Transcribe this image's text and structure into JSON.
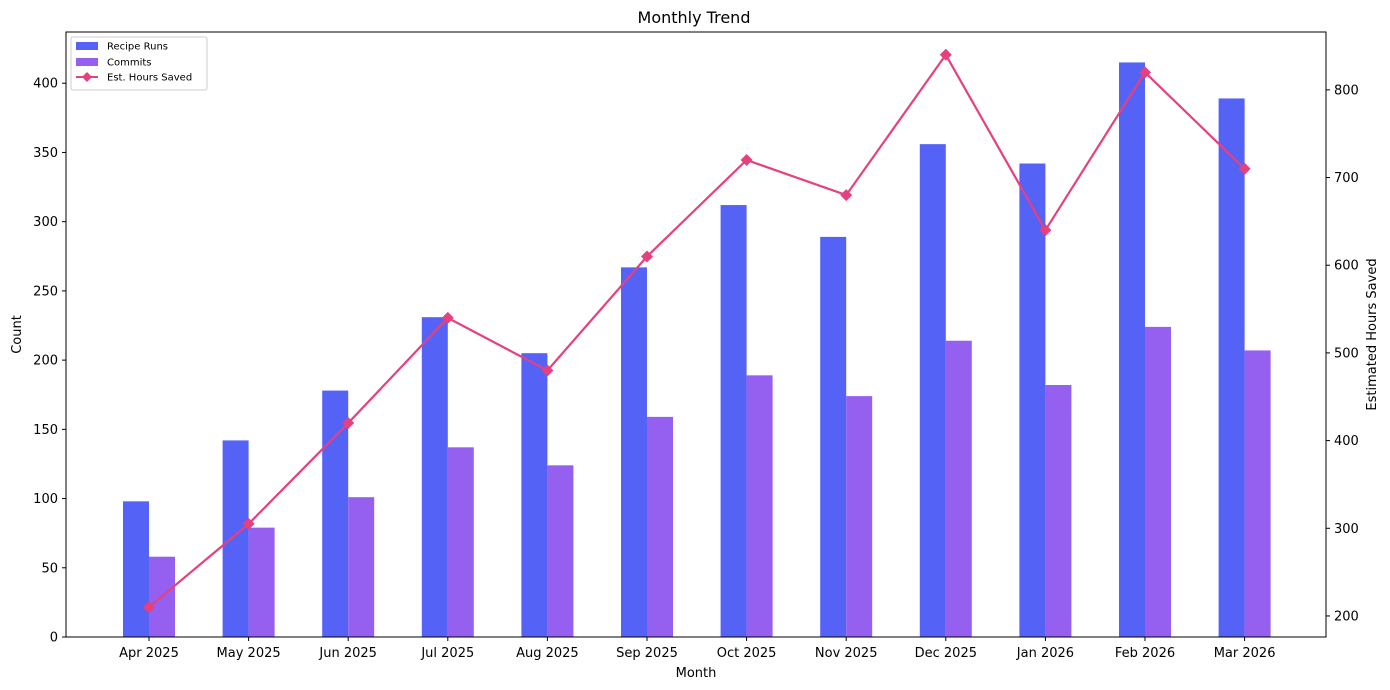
{
  "chart_data": {
    "type": "bar",
    "title": "Monthly Trend",
    "xlabel": "Month",
    "ylabel": "Count",
    "y2label": "Estimated Hours Saved",
    "categories": [
      "Apr 2025",
      "May 2025",
      "Jun 2025",
      "Jul 2025",
      "Aug 2025",
      "Sep 2025",
      "Oct 2025",
      "Nov 2025",
      "Dec 2025",
      "Jan 2026",
      "Feb 2026",
      "Mar 2026"
    ],
    "ylim": [
      0,
      437
    ],
    "y2lim": [
      176,
      866
    ],
    "yticks": [
      0,
      50,
      100,
      150,
      200,
      250,
      300,
      350,
      400
    ],
    "y2ticks": [
      200,
      300,
      400,
      500,
      600,
      700,
      800
    ],
    "grid": false,
    "legend_position": "top-left",
    "series": [
      {
        "name": "Recipe Runs",
        "type": "bar",
        "axis": "left",
        "color": "#5462f5",
        "values": [
          98,
          142,
          178,
          231,
          205,
          267,
          312,
          289,
          356,
          342,
          415,
          389
        ]
      },
      {
        "name": "Commits",
        "type": "bar",
        "axis": "left",
        "color": "#9560ef",
        "values": [
          58,
          79,
          101,
          137,
          124,
          159,
          189,
          174,
          214,
          182,
          224,
          207
        ]
      },
      {
        "name": "Est. Hours Saved",
        "type": "line",
        "axis": "right",
        "color": "#e5407f",
        "marker": "diamond",
        "values": [
          210,
          305,
          420,
          540,
          480,
          610,
          720,
          680,
          840,
          640,
          820,
          710
        ]
      }
    ]
  }
}
